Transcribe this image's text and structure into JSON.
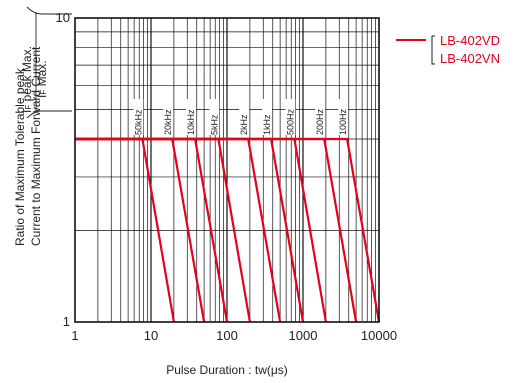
{
  "chart_data": {
    "type": "line",
    "xlabel": "Pulse Duration : tw(μs)",
    "ylabel_line1": "Ratio of Maximum Tolerable peak",
    "ylabel_line2": "Current to Maximum Forward Current",
    "ylabel_ratio_num": "I",
    "ylabel_ratio_num_sub": "F",
    "ylabel_ratio_num_rest": " peak Max.",
    "ylabel_ratio_den": "I",
    "ylabel_ratio_den_sub": "F",
    "ylabel_ratio_den_rest": " Max.",
    "x_scale": "log",
    "y_scale": "log",
    "xlim": [
      1,
      10000
    ],
    "ylim": [
      1,
      10
    ],
    "x_ticks": [
      1,
      10,
      100,
      1000,
      10000
    ],
    "x_tick_labels": [
      "1",
      "10",
      "100",
      "1000",
      "10000"
    ],
    "y_ticks": [
      1,
      10
    ],
    "y_tick_labels": [
      "1",
      "10"
    ],
    "grid": true,
    "legend": {
      "position": "right",
      "entries": [
        "LB-402VD",
        "LB-402VN"
      ],
      "color": "#e3001b"
    },
    "plateau_ratio": 4,
    "series": [
      {
        "label": "50kHz",
        "points": [
          [
            1,
            4
          ],
          [
            7.7,
            4
          ],
          [
            20,
            1
          ]
        ]
      },
      {
        "label": "20kHz",
        "points": [
          [
            1,
            4
          ],
          [
            19,
            4
          ],
          [
            50,
            1
          ]
        ]
      },
      {
        "label": "10kHz",
        "points": [
          [
            1,
            4
          ],
          [
            38,
            4
          ],
          [
            100,
            1
          ]
        ]
      },
      {
        "label": "5kHz",
        "points": [
          [
            1,
            4
          ],
          [
            77,
            4
          ],
          [
            200,
            1
          ]
        ]
      },
      {
        "label": "2kHz",
        "points": [
          [
            1,
            4
          ],
          [
            190,
            4
          ],
          [
            500,
            1
          ]
        ]
      },
      {
        "label": "1kHz",
        "points": [
          [
            1,
            4
          ],
          [
            380,
            4
          ],
          [
            1000,
            1
          ]
        ]
      },
      {
        "label": "500Hz",
        "points": [
          [
            1,
            4
          ],
          [
            770,
            4
          ],
          [
            2000,
            1
          ]
        ]
      },
      {
        "label": "200Hz",
        "points": [
          [
            1,
            4
          ],
          [
            1900,
            4
          ],
          [
            5000,
            1
          ]
        ]
      },
      {
        "label": "100Hz",
        "points": [
          [
            1,
            4
          ],
          [
            3800,
            4
          ],
          [
            10000,
            1
          ]
        ]
      }
    ]
  }
}
